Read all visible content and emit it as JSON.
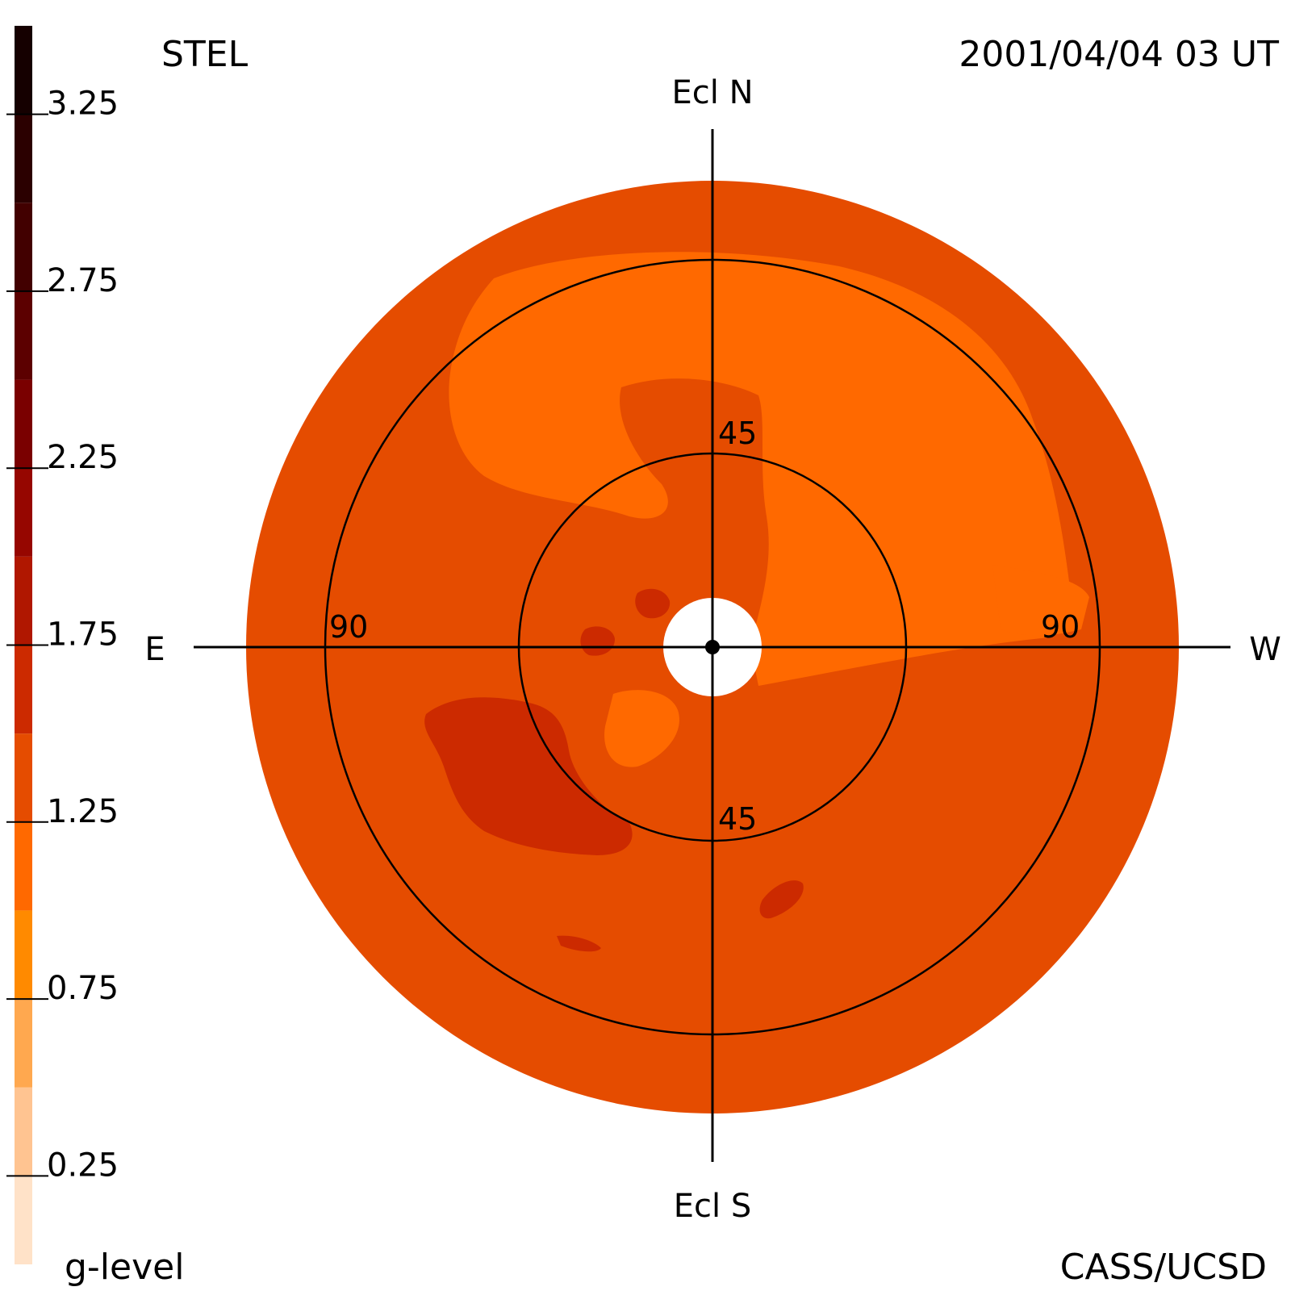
{
  "header": {
    "instrument": "STEL",
    "timestamp": "2001/04/04 03 UT",
    "credit": "CASS/UCSD"
  },
  "chart_data": {
    "type": "heatmap",
    "projection": "polar fisheye sky map",
    "colorbar": {
      "label": "g-level",
      "ticks": [
        "0.25",
        "0.75",
        "1.25",
        "1.75",
        "2.25",
        "2.75",
        "3.25"
      ],
      "range": [
        0,
        3.5
      ],
      "levels": [
        {
          "from": 0.0,
          "color": "#ffe2c8"
        },
        {
          "from": 0.25,
          "color": "#ffc491"
        },
        {
          "from": 0.5,
          "color": "#ffa84f"
        },
        {
          "from": 0.75,
          "color": "#ff8a00"
        },
        {
          "from": 1.0,
          "color": "#ff6900"
        },
        {
          "from": 1.25,
          "color": "#e54c00"
        },
        {
          "from": 1.5,
          "color": "#cc2a00"
        },
        {
          "from": 1.75,
          "color": "#b01700"
        },
        {
          "from": 2.0,
          "color": "#960600"
        },
        {
          "from": 2.25,
          "color": "#7a0000"
        },
        {
          "from": 2.5,
          "color": "#5c0000"
        },
        {
          "from": 2.75,
          "color": "#420000"
        },
        {
          "from": 3.0,
          "color": "#2b0000"
        },
        {
          "from": 3.25,
          "color": "#150000"
        }
      ]
    },
    "directions": {
      "north": "Ecl N",
      "south": "Ecl S",
      "east": "E",
      "west": "W"
    },
    "ring_labels": {
      "inner_top": "45",
      "inner_bottom": "45",
      "outer_left": "90",
      "outer_right": "90"
    },
    "elongation_rings_deg": [
      45,
      90
    ],
    "field_edge_deg": 108,
    "background_level_color": "#e54c00",
    "regions": [
      {
        "level_color": "#ff6900",
        "description": "broad enhanced arc north of center"
      },
      {
        "level_color": "#ff6900",
        "description": "band west of center"
      },
      {
        "level_color": "#ff6900",
        "description": "southern lobe near center"
      },
      {
        "level_color": "#cc2a00",
        "description": "enhanced patch south-east"
      },
      {
        "level_color": "#cc2a00",
        "description": "small patch east of sun"
      }
    ]
  }
}
